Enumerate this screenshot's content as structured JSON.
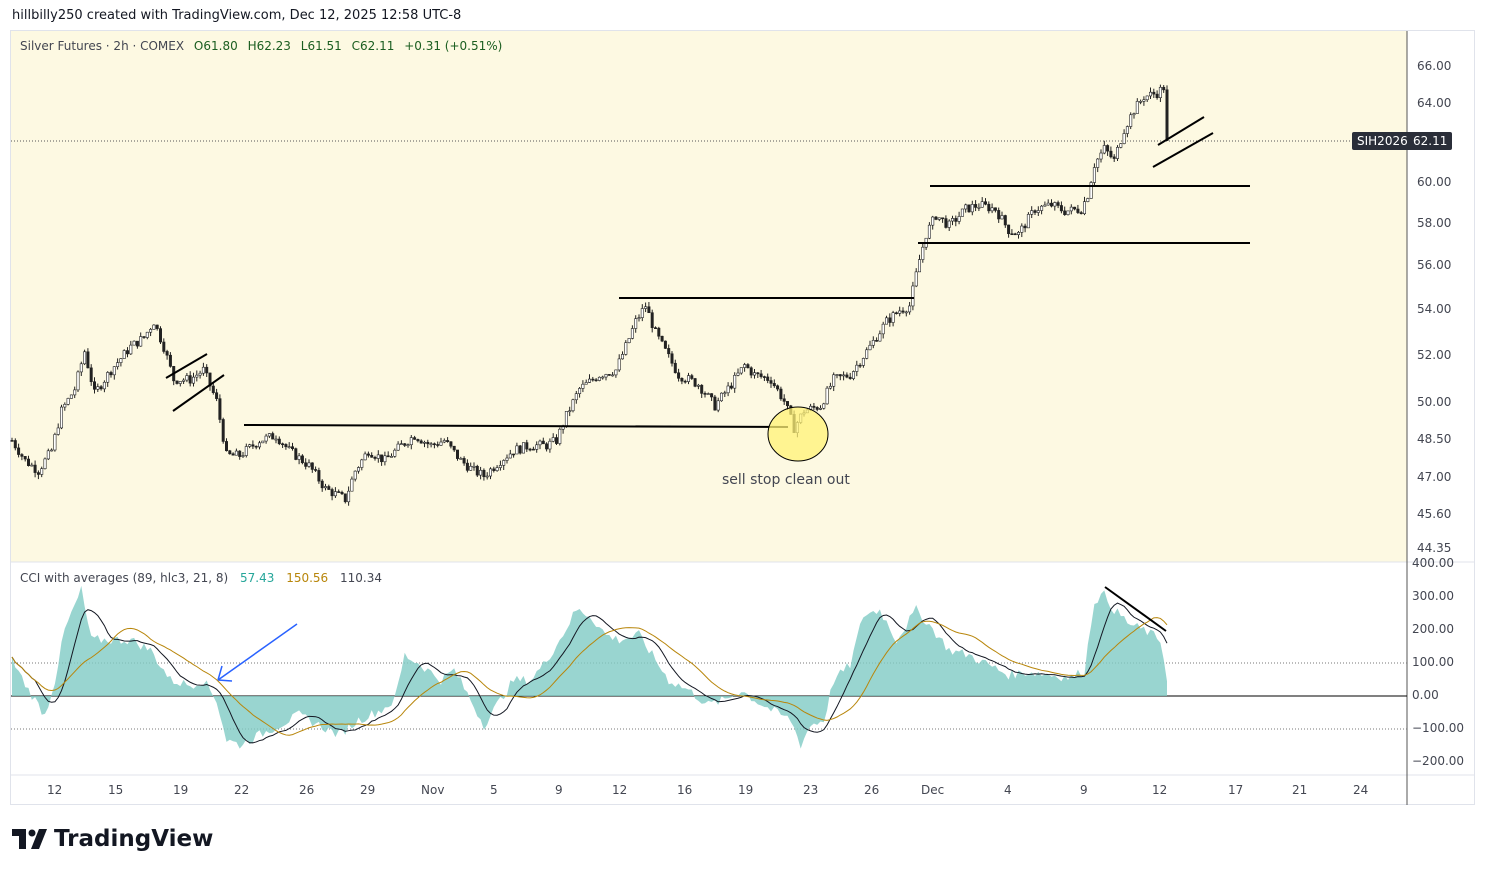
{
  "header": {
    "attribution": "hillbilly250 created with TradingView.com, Dec 12, 2025 12:58 UTC-8"
  },
  "symbol_legend": {
    "name": "Silver Futures · 2h · COMEX",
    "open": "O61.80",
    "high": "H62.23",
    "low": "L61.51",
    "close": "C62.11",
    "change": "+0.31 (+0.51%)"
  },
  "price_badge": {
    "symbol": "SIH2026",
    "price": "62.11"
  },
  "cci_legend": {
    "title": "CCI with averages (89, hlc3, 21, 8)",
    "v1": "57.43",
    "v2": "150.56",
    "v3": "110.34"
  },
  "annotation": {
    "text": "sell stop clean out"
  },
  "brand": {
    "name": "TradingView"
  },
  "colors": {
    "pane_bg": "#fdf9e2",
    "cci_fill": "#80cbc4",
    "ma_slow": "#b8860b",
    "ma_fast": "#131722",
    "arrow": "#2962ff",
    "circle": "#fff176"
  },
  "chart_data": [
    {
      "type": "candlestick",
      "title": "Silver Futures · 2h · COMEX",
      "y_scale": "log",
      "ylim": [
        44.35,
        67
      ],
      "y_ticks": [
        "66.00",
        "64.00",
        "60.00",
        "58.00",
        "56.00",
        "54.00",
        "52.00",
        "50.00",
        "48.50",
        "47.00",
        "45.60",
        "44.35"
      ],
      "x_ticks": [
        "12",
        "15",
        "19",
        "22",
        "26",
        "29",
        "Nov",
        "5",
        "9",
        "12",
        "16",
        "19",
        "23",
        "26",
        "Dec",
        "4",
        "9",
        "12",
        "17",
        "21",
        "24"
      ],
      "last_price": 62.11,
      "bars": 351,
      "close_path": [
        [
          0,
          48.5
        ],
        [
          4,
          47.7
        ],
        [
          8,
          47.3
        ],
        [
          12,
          48.1
        ],
        [
          15,
          49.7
        ],
        [
          19,
          50.6
        ],
        [
          22,
          52.2
        ],
        [
          25,
          50.4
        ],
        [
          30,
          51.4
        ],
        [
          36,
          52.4
        ],
        [
          40,
          52.8
        ],
        [
          43,
          53.5
        ],
        [
          46,
          52.4
        ],
        [
          49,
          51.0
        ],
        [
          54,
          51.0
        ],
        [
          58,
          51.4
        ],
        [
          62,
          50.1
        ],
        [
          65,
          47.9
        ],
        [
          69,
          47.9
        ],
        [
          75,
          48.5
        ],
        [
          80,
          48.7
        ],
        [
          84,
          48.1
        ],
        [
          90,
          47.5
        ],
        [
          95,
          46.6
        ],
        [
          101,
          46.2
        ],
        [
          104,
          47.3
        ],
        [
          108,
          48.1
        ],
        [
          113,
          47.7
        ],
        [
          118,
          48.3
        ],
        [
          122,
          48.7
        ],
        [
          127,
          48.3
        ],
        [
          131,
          48.5
        ],
        [
          136,
          47.7
        ],
        [
          140,
          47.3
        ],
        [
          143,
          47.1
        ],
        [
          148,
          47.7
        ],
        [
          152,
          48.1
        ],
        [
          157,
          48.3
        ],
        [
          162,
          48.3
        ],
        [
          165,
          48.5
        ],
        [
          168,
          49.5
        ],
        [
          172,
          50.6
        ],
        [
          178,
          51.2
        ],
        [
          183,
          51.4
        ],
        [
          186,
          52.4
        ],
        [
          189,
          53.5
        ],
        [
          192,
          54.2
        ],
        [
          195,
          53.0
        ],
        [
          198,
          52.2
        ],
        [
          202,
          51.2
        ],
        [
          208,
          50.8
        ],
        [
          213,
          49.9
        ],
        [
          218,
          50.8
        ],
        [
          222,
          51.6
        ],
        [
          225,
          51.2
        ],
        [
          230,
          51.0
        ],
        [
          234,
          50.1
        ],
        [
          237,
          49.0
        ],
        [
          240,
          49.7
        ],
        [
          245,
          49.9
        ],
        [
          249,
          51.0
        ],
        [
          254,
          51.2
        ],
        [
          257,
          51.8
        ],
        [
          260,
          52.4
        ],
        [
          265,
          53.5
        ],
        [
          269,
          54.0
        ],
        [
          272,
          54.2
        ],
        [
          275,
          56.3
        ],
        [
          277,
          57.5
        ],
        [
          280,
          58.4
        ],
        [
          284,
          57.9
        ],
        [
          289,
          58.7
        ],
        [
          293,
          58.9
        ],
        [
          298,
          58.7
        ],
        [
          302,
          57.7
        ],
        [
          305,
          57.5
        ],
        [
          310,
          58.7
        ],
        [
          315,
          58.9
        ],
        [
          319,
          58.6
        ],
        [
          324,
          58.7
        ],
        [
          326,
          59.4
        ],
        [
          328,
          60.9
        ],
        [
          331,
          61.7
        ],
        [
          334,
          61.1
        ],
        [
          337,
          62.7
        ],
        [
          340,
          63.7
        ],
        [
          343,
          64.4
        ],
        [
          347,
          64.6
        ],
        [
          349,
          64.9
        ],
        [
          350,
          62.11
        ]
      ]
    },
    {
      "type": "area",
      "title": "CCI with averages (89, hlc3, 21, 8)",
      "ylim": [
        -240,
        400
      ],
      "y_ticks": [
        "400.00",
        "300.00",
        "200.00",
        "100.00",
        "0.00",
        "−100.00",
        "−200.00"
      ],
      "levels": [
        100,
        0,
        -100
      ],
      "cci_path": [
        [
          0,
          109
        ],
        [
          5,
          18
        ],
        [
          10,
          -58
        ],
        [
          13,
          48
        ],
        [
          16,
          200
        ],
        [
          21,
          321
        ],
        [
          24,
          170
        ],
        [
          30,
          170
        ],
        [
          36,
          170
        ],
        [
          42,
          139
        ],
        [
          48,
          48
        ],
        [
          54,
          33
        ],
        [
          58,
          48
        ],
        [
          62,
          -12
        ],
        [
          65,
          -133
        ],
        [
          69,
          -148
        ],
        [
          75,
          -118
        ],
        [
          81,
          -88
        ],
        [
          87,
          -58
        ],
        [
          93,
          -88
        ],
        [
          99,
          -118
        ],
        [
          105,
          -73
        ],
        [
          112,
          -42
        ],
        [
          116,
          -12
        ],
        [
          119,
          124
        ],
        [
          124,
          94
        ],
        [
          130,
          48
        ],
        [
          134,
          79
        ],
        [
          139,
          -12
        ],
        [
          143,
          -88
        ],
        [
          148,
          -12
        ],
        [
          152,
          48
        ],
        [
          157,
          48
        ],
        [
          161,
          94
        ],
        [
          166,
          170
        ],
        [
          171,
          261
        ],
        [
          175,
          245
        ],
        [
          180,
          185
        ],
        [
          184,
          170
        ],
        [
          190,
          185
        ],
        [
          195,
          109
        ],
        [
          199,
          48
        ],
        [
          205,
          18
        ],
        [
          211,
          -27
        ],
        [
          216,
          -12
        ],
        [
          221,
          18
        ],
        [
          225,
          -12
        ],
        [
          230,
          -42
        ],
        [
          236,
          -73
        ],
        [
          239,
          -148
        ],
        [
          242,
          -88
        ],
        [
          246,
          -73
        ],
        [
          249,
          48
        ],
        [
          254,
          94
        ],
        [
          258,
          245
        ],
        [
          263,
          261
        ],
        [
          268,
          170
        ],
        [
          274,
          261
        ],
        [
          278,
          215
        ],
        [
          284,
          139
        ],
        [
          290,
          124
        ],
        [
          296,
          94
        ],
        [
          302,
          64
        ],
        [
          308,
          73
        ],
        [
          315,
          64
        ],
        [
          321,
          55
        ],
        [
          325,
          79
        ],
        [
          328,
          291
        ],
        [
          331,
          306
        ],
        [
          334,
          261
        ],
        [
          339,
          215
        ],
        [
          343,
          200
        ],
        [
          348,
          170
        ],
        [
          350,
          57.43
        ]
      ]
    }
  ]
}
